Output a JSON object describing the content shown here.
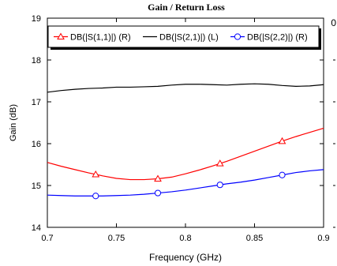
{
  "chart_data": {
    "type": "line",
    "title": "Gain / Return Loss",
    "xlabel": "Frequency (GHz)",
    "ylabel_left": "Gain (dB)",
    "x_ticks": [
      "0.7",
      "0.75",
      "0.8",
      "0.85",
      "0.9"
    ],
    "y_ticks_left": [
      "14",
      "15",
      "16",
      "17",
      "18",
      "19"
    ],
    "right_axis_top_label": "0",
    "xlim": [
      0.7,
      0.9
    ],
    "ylim_left": [
      14,
      19
    ],
    "grid": false,
    "legend_position": "top",
    "series": [
      {
        "name": "DB(|S(1,1)|) (R)",
        "color": "#ff0000",
        "marker": "triangle",
        "x": [
          0.7,
          0.71,
          0.72,
          0.73,
          0.74,
          0.75,
          0.76,
          0.77,
          0.78,
          0.79,
          0.8,
          0.81,
          0.82,
          0.83,
          0.84,
          0.85,
          0.86,
          0.87,
          0.88,
          0.89,
          0.9
        ],
        "y": [
          15.55,
          15.46,
          15.38,
          15.3,
          15.23,
          15.17,
          15.14,
          15.14,
          15.16,
          15.2,
          15.28,
          15.37,
          15.47,
          15.58,
          15.7,
          15.82,
          15.94,
          16.06,
          16.17,
          16.27,
          16.37
        ],
        "marker_x": [
          0.735,
          0.78,
          0.825,
          0.87
        ]
      },
      {
        "name": "DB(|S(2,1)|) (L)",
        "color": "#000000",
        "marker": "none",
        "x": [
          0.7,
          0.71,
          0.72,
          0.73,
          0.74,
          0.75,
          0.76,
          0.77,
          0.78,
          0.79,
          0.8,
          0.81,
          0.82,
          0.83,
          0.84,
          0.85,
          0.86,
          0.87,
          0.88,
          0.89,
          0.9
        ],
        "y": [
          17.23,
          17.27,
          17.3,
          17.32,
          17.33,
          17.35,
          17.35,
          17.36,
          17.37,
          17.4,
          17.42,
          17.42,
          17.41,
          17.4,
          17.42,
          17.43,
          17.42,
          17.39,
          17.37,
          17.38,
          17.41
        ],
        "marker_x": []
      },
      {
        "name": "DB(|S(2,2)|) (R)",
        "color": "#0000ff",
        "marker": "circle",
        "x": [
          0.7,
          0.71,
          0.72,
          0.73,
          0.74,
          0.75,
          0.76,
          0.77,
          0.78,
          0.79,
          0.8,
          0.81,
          0.82,
          0.83,
          0.84,
          0.85,
          0.86,
          0.87,
          0.88,
          0.89,
          0.9
        ],
        "y": [
          14.77,
          14.76,
          14.75,
          14.75,
          14.75,
          14.76,
          14.77,
          14.79,
          14.82,
          14.85,
          14.89,
          14.94,
          14.99,
          15.04,
          15.08,
          15.13,
          15.19,
          15.25,
          15.31,
          15.35,
          15.38
        ],
        "marker_x": [
          0.735,
          0.78,
          0.825,
          0.87
        ]
      }
    ]
  }
}
